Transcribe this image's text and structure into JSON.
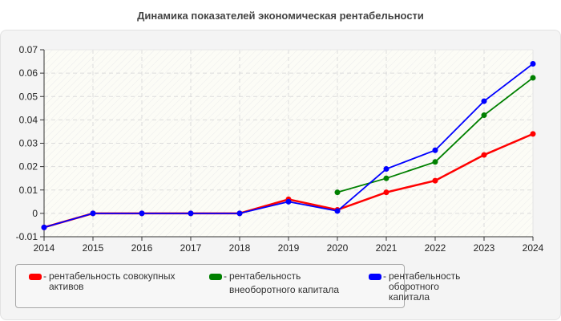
{
  "title": "Динамика показателей экономическая рентабельности",
  "chart_data": {
    "type": "line",
    "title": "Динамика показателей экономическая рентабельности",
    "xlabel": "",
    "ylabel": "",
    "x": [
      "2014",
      "2015",
      "2016",
      "2017",
      "2018",
      "2019",
      "2020",
      "2021",
      "2022",
      "2023",
      "2024"
    ],
    "ylim": [
      -0.01,
      0.07
    ],
    "yticks": [
      "0.07",
      "0.06",
      "0.05",
      "0.04",
      "0.03",
      "0.02",
      "0.01",
      "0",
      "-0.01"
    ],
    "grid": true,
    "legend_position": "bottom",
    "series": [
      {
        "name": "рентабельность совокупных активов",
        "color": "#ff0000",
        "values": [
          -0.006,
          0,
          0,
          0,
          0,
          0.006,
          0.0015,
          0.009,
          0.014,
          0.025,
          0.034
        ]
      },
      {
        "name": "рентабельность внеоборотного капитала",
        "color": "#008000",
        "values": [
          null,
          null,
          null,
          null,
          null,
          null,
          0.009,
          0.015,
          0.022,
          0.042,
          0.058
        ]
      },
      {
        "name": "рентабельность оборотного капитала",
        "color": "#0000ff",
        "values": [
          -0.006,
          0,
          0,
          0,
          0,
          0.005,
          0.001,
          0.019,
          0.027,
          0.048,
          0.064
        ]
      }
    ]
  },
  "legend": [
    {
      "label_line1": "рентабельность совокупных",
      "label_line2": "активов",
      "color": "#ff0000"
    },
    {
      "label_line1": "рентабельность",
      "label_line2": "внеоборотного капитала",
      "color": "#008000"
    },
    {
      "label_line1": "рентабельность оборотного",
      "label_line2": "капитала",
      "color": "#0000ff"
    }
  ]
}
